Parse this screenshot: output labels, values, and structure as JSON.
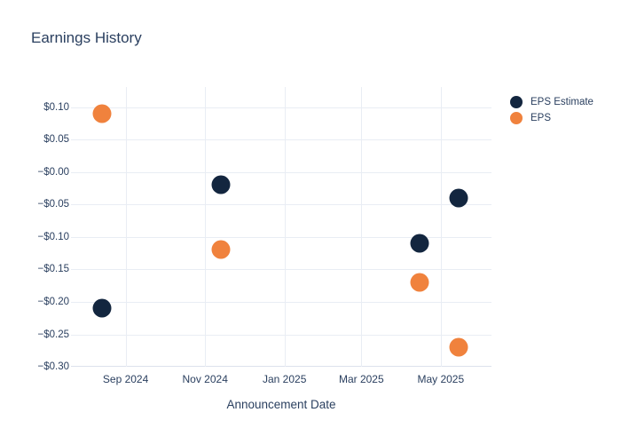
{
  "chart_data": {
    "type": "scatter",
    "title": "Earnings History",
    "xlabel": "Announcement Date",
    "ylabel": "",
    "grid": true,
    "legend_position": "outside-top-right",
    "background_color": "#ffffff",
    "text_color": "#2a3f5f",
    "grid_color": "#e9edf4",
    "axis_line_color": "#dce1ed",
    "x_range": [
      "2024-07-21",
      "2025-06-09"
    ],
    "y_range": [
      -0.3,
      0.131
    ],
    "x_ticks": [
      {
        "date": "2024-09-01",
        "label": "Sep 2024"
      },
      {
        "date": "2024-11-01",
        "label": "Nov 2024"
      },
      {
        "date": "2025-01-01",
        "label": "Jan 2025"
      },
      {
        "date": "2025-03-01",
        "label": "Mar 2025"
      },
      {
        "date": "2025-05-01",
        "label": "May 2025"
      }
    ],
    "y_ticks": [
      {
        "value": 0.1,
        "label": "$0.10"
      },
      {
        "value": 0.05,
        "label": "$0.05"
      },
      {
        "value": 0.0,
        "label": "−$0.00"
      },
      {
        "value": -0.05,
        "label": "−$0.05"
      },
      {
        "value": -0.1,
        "label": "−$0.10"
      },
      {
        "value": -0.15,
        "label": "−$0.15"
      },
      {
        "value": -0.2,
        "label": "−$0.20"
      },
      {
        "value": -0.25,
        "label": "−$0.25"
      },
      {
        "value": -0.3,
        "label": "−$0.30"
      }
    ],
    "series": [
      {
        "name": "EPS Estimate",
        "color": "#13263f",
        "points": [
          {
            "date": "2024-08-14",
            "value": -0.21
          },
          {
            "date": "2024-11-13",
            "value": -0.02
          },
          {
            "date": "2025-04-15",
            "value": -0.11
          },
          {
            "date": "2025-05-15",
            "value": -0.04
          }
        ]
      },
      {
        "name": "EPS",
        "color": "#f0823d",
        "points": [
          {
            "date": "2024-08-14",
            "value": 0.09
          },
          {
            "date": "2024-11-13",
            "value": -0.12
          },
          {
            "date": "2025-04-15",
            "value": -0.17
          },
          {
            "date": "2025-05-15",
            "value": -0.27
          }
        ]
      }
    ]
  }
}
